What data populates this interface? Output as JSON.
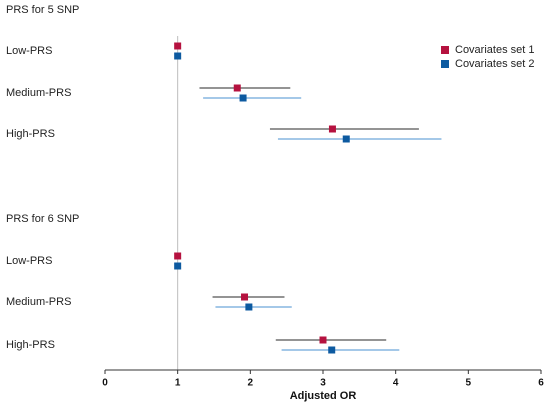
{
  "chart_data": {
    "type": "forest",
    "xlabel": "Adjusted OR",
    "xlim": [
      0,
      6
    ],
    "x_ticks": [
      "0",
      "1",
      "2",
      "3",
      "4",
      "5",
      "6"
    ],
    "reference_line": 1,
    "legend_position": "top-right",
    "series": [
      {
        "name": "Covariates set 1",
        "color": "#b5123f"
      },
      {
        "name": "Covariates set 2",
        "color": "#0d5aa0"
      }
    ],
    "groups": [
      {
        "label": "PRS for 5 SNP",
        "rows": [
          {
            "label": "Low-PRS",
            "points": [
              {
                "series": 0,
                "or": 1.0,
                "lo": 1.0,
                "hi": 1.0
              },
              {
                "series": 1,
                "or": 1.0,
                "lo": 1.0,
                "hi": 1.0
              }
            ]
          },
          {
            "label": "Medium-PRS",
            "points": [
              {
                "series": 0,
                "or": 1.82,
                "lo": 1.3,
                "hi": 2.55
              },
              {
                "series": 1,
                "or": 1.9,
                "lo": 1.35,
                "hi": 2.7
              }
            ]
          },
          {
            "label": "High-PRS",
            "points": [
              {
                "series": 0,
                "or": 3.13,
                "lo": 2.27,
                "hi": 4.32
              },
              {
                "series": 1,
                "or": 3.32,
                "lo": 2.38,
                "hi": 4.63
              }
            ]
          }
        ]
      },
      {
        "label": "PRS for 6 SNP",
        "rows": [
          {
            "label": "Low-PRS",
            "points": [
              {
                "series": 0,
                "or": 1.0,
                "lo": 1.0,
                "hi": 1.0
              },
              {
                "series": 1,
                "or": 1.0,
                "lo": 1.0,
                "hi": 1.0
              }
            ]
          },
          {
            "label": "Medium-PRS",
            "points": [
              {
                "series": 0,
                "or": 1.92,
                "lo": 1.48,
                "hi": 2.47
              },
              {
                "series": 1,
                "or": 1.98,
                "lo": 1.52,
                "hi": 2.57
              }
            ]
          },
          {
            "label": "High-PRS",
            "points": [
              {
                "series": 0,
                "or": 3.0,
                "lo": 2.35,
                "hi": 3.87
              },
              {
                "series": 1,
                "or": 3.12,
                "lo": 2.43,
                "hi": 4.05
              }
            ]
          }
        ]
      }
    ]
  }
}
